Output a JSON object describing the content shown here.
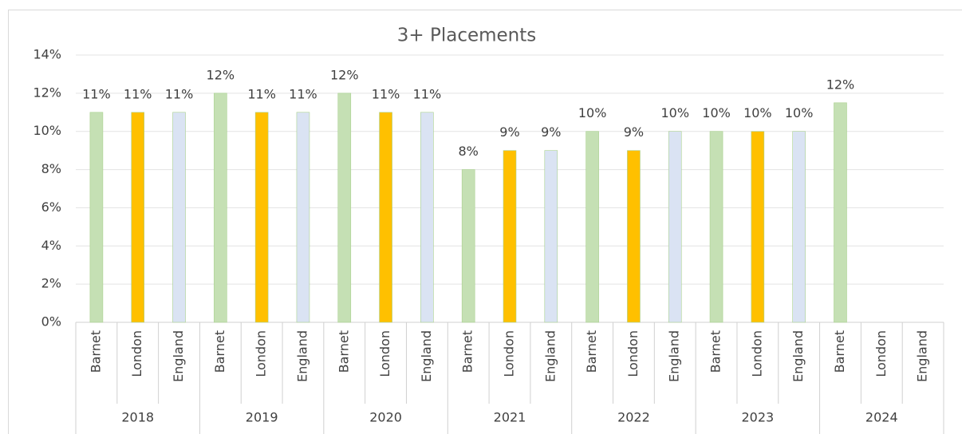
{
  "chart_data": {
    "type": "bar",
    "title": "3+ Placements",
    "groups": [
      "2018",
      "2019",
      "2020",
      "2021",
      "2022",
      "2023",
      "2024"
    ],
    "series": [
      {
        "name": "Barnet",
        "color": "#c5e0b4",
        "values": [
          11,
          12,
          12,
          8,
          10,
          10,
          11.5
        ],
        "value_labels": [
          "11%",
          "12%",
          "12%",
          "8%",
          "10%",
          "10%",
          "12%"
        ]
      },
      {
        "name": "London",
        "color": "#ffc000",
        "values": [
          11,
          11,
          11,
          9,
          9,
          10,
          null
        ],
        "value_labels": [
          "11%",
          "11%",
          "11%",
          "9%",
          "9%",
          "10%",
          null
        ]
      },
      {
        "name": "England",
        "color": "#dae3f3",
        "values": [
          11,
          11,
          11,
          9,
          10,
          10,
          null
        ],
        "value_labels": [
          "11%",
          "11%",
          "11%",
          "9%",
          "10%",
          "10%",
          null
        ]
      }
    ],
    "ylim": [
      0,
      14
    ],
    "yticks": [
      {
        "value": 0,
        "label": "0%"
      },
      {
        "value": 2,
        "label": "2%"
      },
      {
        "value": 4,
        "label": "4%"
      },
      {
        "value": 6,
        "label": "6%"
      },
      {
        "value": 8,
        "label": "8%"
      },
      {
        "value": 10,
        "label": "10%"
      },
      {
        "value": 12,
        "label": "12%"
      },
      {
        "value": 14,
        "label": "14%"
      }
    ],
    "grid": true
  }
}
